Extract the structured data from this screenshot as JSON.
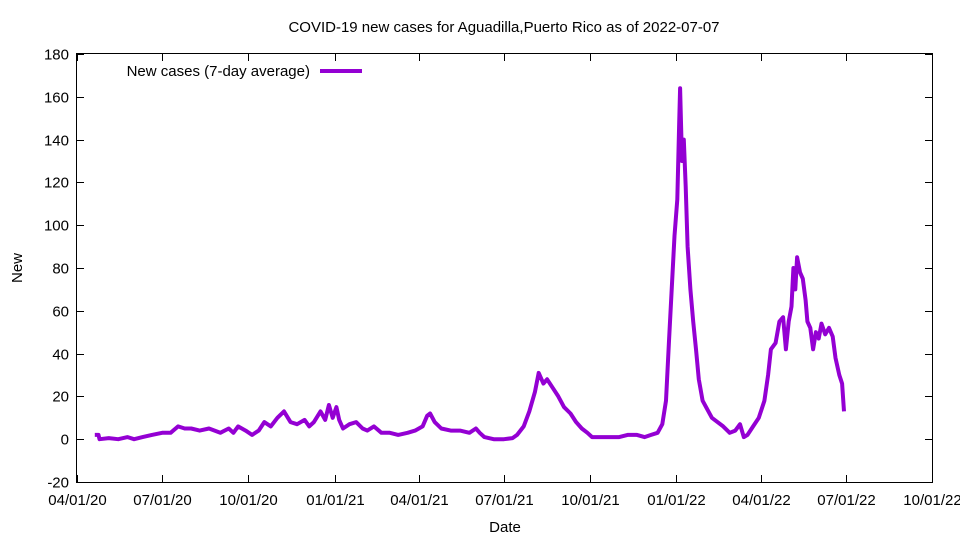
{
  "chart_data": {
    "type": "line",
    "title": "COVID-19 new cases for Aguadilla,Puerto Rico as of 2022-07-07",
    "xlabel": "Date",
    "ylabel": "New",
    "xlim": [
      "2020-04-01",
      "2022-10-01"
    ],
    "ylim": [
      -20,
      180
    ],
    "x_ticks": [
      "04/01/20",
      "07/01/20",
      "10/01/20",
      "01/01/21",
      "04/01/21",
      "07/01/21",
      "10/01/21",
      "01/01/22",
      "04/01/22",
      "07/01/22",
      "10/01/22"
    ],
    "y_ticks": [
      "-20",
      "0",
      "20",
      "40",
      "60",
      "80",
      "100",
      "120",
      "140",
      "160",
      "180"
    ],
    "grid": false,
    "legend_position": "top-left",
    "series": [
      {
        "name": "New cases (7-day average)",
        "color": "#9400d3",
        "points": [
          [
            "2020-04-20",
            2
          ],
          [
            "2020-04-24",
            2
          ],
          [
            "2020-04-25",
            0
          ],
          [
            "2020-05-05",
            0.5
          ],
          [
            "2020-05-15",
            0
          ],
          [
            "2020-05-25",
            1
          ],
          [
            "2020-06-01",
            0
          ],
          [
            "2020-06-10",
            1
          ],
          [
            "2020-06-20",
            2
          ],
          [
            "2020-07-01",
            3
          ],
          [
            "2020-07-10",
            3
          ],
          [
            "2020-07-18",
            6
          ],
          [
            "2020-07-25",
            5
          ],
          [
            "2020-08-01",
            5
          ],
          [
            "2020-08-10",
            4
          ],
          [
            "2020-08-20",
            5
          ],
          [
            "2020-09-01",
            3
          ],
          [
            "2020-09-10",
            5
          ],
          [
            "2020-09-15",
            3
          ],
          [
            "2020-09-20",
            6
          ],
          [
            "2020-09-28",
            4
          ],
          [
            "2020-10-05",
            2
          ],
          [
            "2020-10-12",
            4
          ],
          [
            "2020-10-18",
            8
          ],
          [
            "2020-10-25",
            6
          ],
          [
            "2020-11-01",
            10
          ],
          [
            "2020-11-08",
            13
          ],
          [
            "2020-11-15",
            8
          ],
          [
            "2020-11-22",
            7
          ],
          [
            "2020-11-30",
            9
          ],
          [
            "2020-12-05",
            6
          ],
          [
            "2020-12-10",
            8
          ],
          [
            "2020-12-17",
            13
          ],
          [
            "2020-12-22",
            9
          ],
          [
            "2020-12-26",
            16
          ],
          [
            "2020-12-30",
            10
          ],
          [
            "2021-01-03",
            15
          ],
          [
            "2021-01-06",
            9
          ],
          [
            "2021-01-10",
            5
          ],
          [
            "2021-01-17",
            7
          ],
          [
            "2021-01-24",
            8
          ],
          [
            "2021-01-31",
            5
          ],
          [
            "2021-02-05",
            4
          ],
          [
            "2021-02-12",
            6
          ],
          [
            "2021-02-20",
            3
          ],
          [
            "2021-03-01",
            3
          ],
          [
            "2021-03-10",
            2
          ],
          [
            "2021-03-20",
            3
          ],
          [
            "2021-03-28",
            4
          ],
          [
            "2021-04-05",
            6
          ],
          [
            "2021-04-10",
            11
          ],
          [
            "2021-04-13",
            12
          ],
          [
            "2021-04-18",
            8
          ],
          [
            "2021-04-25",
            5
          ],
          [
            "2021-05-05",
            4
          ],
          [
            "2021-05-15",
            4
          ],
          [
            "2021-05-25",
            3
          ],
          [
            "2021-06-01",
            5
          ],
          [
            "2021-06-05",
            3
          ],
          [
            "2021-06-10",
            1
          ],
          [
            "2021-06-20",
            0
          ],
          [
            "2021-07-01",
            0
          ],
          [
            "2021-07-10",
            0.5
          ],
          [
            "2021-07-15",
            2
          ],
          [
            "2021-07-22",
            6
          ],
          [
            "2021-07-28",
            13
          ],
          [
            "2021-08-03",
            22
          ],
          [
            "2021-08-07",
            31
          ],
          [
            "2021-08-12",
            26
          ],
          [
            "2021-08-16",
            28
          ],
          [
            "2021-08-22",
            24
          ],
          [
            "2021-08-28",
            20
          ],
          [
            "2021-09-03",
            15
          ],
          [
            "2021-09-10",
            12
          ],
          [
            "2021-09-16",
            8
          ],
          [
            "2021-09-22",
            5
          ],
          [
            "2021-09-28",
            3
          ],
          [
            "2021-10-03",
            1
          ],
          [
            "2021-10-12",
            1
          ],
          [
            "2021-10-20",
            1
          ],
          [
            "2021-11-01",
            1
          ],
          [
            "2021-11-10",
            2
          ],
          [
            "2021-11-20",
            2
          ],
          [
            "2021-11-28",
            1
          ],
          [
            "2021-12-05",
            2
          ],
          [
            "2021-12-12",
            3
          ],
          [
            "2021-12-17",
            7
          ],
          [
            "2021-12-21",
            18
          ],
          [
            "2021-12-24",
            45
          ],
          [
            "2021-12-27",
            70
          ],
          [
            "2021-12-30",
            95
          ],
          [
            "2022-01-02",
            112
          ],
          [
            "2022-01-04",
            148
          ],
          [
            "2022-01-05",
            164
          ],
          [
            "2022-01-07",
            130
          ],
          [
            "2022-01-09",
            140
          ],
          [
            "2022-01-11",
            118
          ],
          [
            "2022-01-13",
            90
          ],
          [
            "2022-01-16",
            70
          ],
          [
            "2022-01-19",
            55
          ],
          [
            "2022-01-22",
            42
          ],
          [
            "2022-01-25",
            28
          ],
          [
            "2022-01-29",
            18
          ],
          [
            "2022-02-03",
            14
          ],
          [
            "2022-02-08",
            10
          ],
          [
            "2022-02-14",
            8
          ],
          [
            "2022-02-20",
            6
          ],
          [
            "2022-02-27",
            3
          ],
          [
            "2022-03-05",
            4
          ],
          [
            "2022-03-10",
            7
          ],
          [
            "2022-03-14",
            1
          ],
          [
            "2022-03-18",
            2
          ],
          [
            "2022-03-24",
            6
          ],
          [
            "2022-03-30",
            10
          ],
          [
            "2022-04-05",
            18
          ],
          [
            "2022-04-09",
            30
          ],
          [
            "2022-04-12",
            42
          ],
          [
            "2022-04-17",
            45
          ],
          [
            "2022-04-21",
            55
          ],
          [
            "2022-04-25",
            57
          ],
          [
            "2022-04-28",
            42
          ],
          [
            "2022-05-01",
            55
          ],
          [
            "2022-05-04",
            62
          ],
          [
            "2022-05-06",
            80
          ],
          [
            "2022-05-08",
            70
          ],
          [
            "2022-05-10",
            85
          ],
          [
            "2022-05-13",
            78
          ],
          [
            "2022-05-16",
            75
          ],
          [
            "2022-05-19",
            65
          ],
          [
            "2022-05-21",
            55
          ],
          [
            "2022-05-24",
            52
          ],
          [
            "2022-05-27",
            42
          ],
          [
            "2022-05-30",
            50
          ],
          [
            "2022-06-02",
            47
          ],
          [
            "2022-06-05",
            54
          ],
          [
            "2022-06-09",
            49
          ],
          [
            "2022-06-13",
            52
          ],
          [
            "2022-06-17",
            48
          ],
          [
            "2022-06-20",
            38
          ],
          [
            "2022-06-24",
            30
          ],
          [
            "2022-06-27",
            26
          ],
          [
            "2022-06-29",
            13
          ]
        ]
      }
    ]
  }
}
